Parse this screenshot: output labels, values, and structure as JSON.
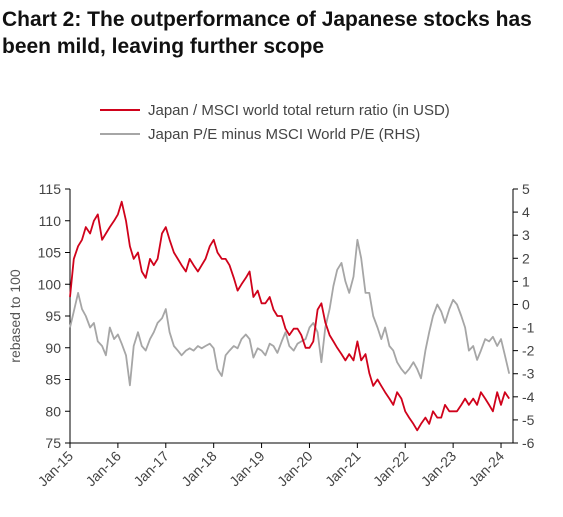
{
  "chart_data": {
    "type": "line",
    "title": "Chart 2: The outperformance of Japanese stocks has been mild, leaving further scope",
    "ylabel": "rebased to 100",
    "y2label": "",
    "ylim": [
      75,
      115
    ],
    "y2lim": [
      -6,
      5
    ],
    "yticks": [
      "115",
      "110",
      "105",
      "100",
      "95",
      "90",
      "85",
      "80",
      "75"
    ],
    "y2ticks": [
      "5",
      "4",
      "3",
      "2",
      "1",
      "0",
      "-1",
      "-2",
      "-3",
      "-4",
      "-5",
      "-6"
    ],
    "xticks": [
      "Jan-15",
      "Jan-16",
      "Jan-17",
      "Jan-18",
      "Jan-19",
      "Jan-20",
      "Jan-21",
      "Jan-22",
      "Jan-23",
      "Jan-24"
    ],
    "grid": false,
    "legend_position": "top",
    "series": [
      {
        "name": "Japan / MSCI world total return ratio (in USD)",
        "axis": "left",
        "color": "#d0021b",
        "x": [
          2015.0,
          2015.08,
          2015.17,
          2015.25,
          2015.33,
          2015.42,
          2015.5,
          2015.58,
          2015.67,
          2015.75,
          2015.83,
          2015.92,
          2016.0,
          2016.08,
          2016.17,
          2016.25,
          2016.33,
          2016.42,
          2016.5,
          2016.58,
          2016.67,
          2016.75,
          2016.83,
          2016.92,
          2017.0,
          2017.08,
          2017.17,
          2017.25,
          2017.33,
          2017.42,
          2017.5,
          2017.58,
          2017.67,
          2017.75,
          2017.83,
          2017.92,
          2018.0,
          2018.08,
          2018.17,
          2018.25,
          2018.33,
          2018.42,
          2018.5,
          2018.58,
          2018.67,
          2018.75,
          2018.83,
          2018.92,
          2019.0,
          2019.08,
          2019.17,
          2019.25,
          2019.33,
          2019.42,
          2019.5,
          2019.58,
          2019.67,
          2019.75,
          2019.83,
          2019.92,
          2020.0,
          2020.08,
          2020.17,
          2020.25,
          2020.33,
          2020.42,
          2020.5,
          2020.58,
          2020.67,
          2020.75,
          2020.83,
          2020.92,
          2021.0,
          2021.08,
          2021.17,
          2021.25,
          2021.33,
          2021.42,
          2021.5,
          2021.58,
          2021.67,
          2021.75,
          2021.83,
          2021.92,
          2022.0,
          2022.08,
          2022.17,
          2022.25,
          2022.33,
          2022.42,
          2022.5,
          2022.58,
          2022.67,
          2022.75,
          2022.83,
          2022.92,
          2023.0,
          2023.08,
          2023.17,
          2023.25,
          2023.33,
          2023.42,
          2023.5,
          2023.58,
          2023.67,
          2023.75,
          2023.83,
          2023.92,
          2024.0,
          2024.08,
          2024.17
        ],
        "values": [
          98,
          104,
          106,
          107,
          109,
          108,
          110,
          111,
          107,
          108,
          109,
          110,
          111,
          113,
          110,
          106,
          104,
          105,
          102,
          101,
          104,
          103,
          104,
          108,
          109,
          107,
          105,
          104,
          103,
          102,
          104,
          103,
          102,
          103,
          104,
          106,
          107,
          105,
          104,
          104,
          103,
          101,
          99,
          100,
          101,
          102,
          98,
          99,
          97,
          97,
          98,
          96,
          95,
          95,
          93,
          92,
          93,
          93,
          92,
          90,
          90,
          91,
          96,
          97,
          94,
          92,
          91,
          90,
          89,
          88,
          89,
          88,
          91,
          88,
          89,
          86,
          84,
          85,
          84,
          83,
          82,
          81,
          83,
          82,
          80,
          79,
          78,
          77,
          78,
          79,
          78,
          80,
          79,
          79,
          81,
          80,
          80,
          80,
          81,
          82,
          81,
          82,
          81,
          83,
          82,
          81,
          80,
          83,
          81,
          83,
          82
        ]
      },
      {
        "name": "Japan P/E minus MSCI World P/E (RHS)",
        "axis": "right",
        "color": "#a6a6a6",
        "x": [
          2015.0,
          2015.08,
          2015.17,
          2015.25,
          2015.33,
          2015.42,
          2015.5,
          2015.58,
          2015.67,
          2015.75,
          2015.83,
          2015.92,
          2016.0,
          2016.08,
          2016.17,
          2016.25,
          2016.33,
          2016.42,
          2016.5,
          2016.58,
          2016.67,
          2016.75,
          2016.83,
          2016.92,
          2017.0,
          2017.08,
          2017.17,
          2017.25,
          2017.33,
          2017.42,
          2017.5,
          2017.58,
          2017.67,
          2017.75,
          2017.83,
          2017.92,
          2018.0,
          2018.08,
          2018.17,
          2018.25,
          2018.33,
          2018.42,
          2018.5,
          2018.58,
          2018.67,
          2018.75,
          2018.83,
          2018.92,
          2019.0,
          2019.08,
          2019.17,
          2019.25,
          2019.33,
          2019.42,
          2019.5,
          2019.58,
          2019.67,
          2019.75,
          2019.83,
          2019.92,
          2020.0,
          2020.08,
          2020.17,
          2020.25,
          2020.33,
          2020.42,
          2020.5,
          2020.58,
          2020.67,
          2020.75,
          2020.83,
          2020.92,
          2021.0,
          2021.08,
          2021.17,
          2021.25,
          2021.33,
          2021.42,
          2021.5,
          2021.58,
          2021.67,
          2021.75,
          2021.83,
          2021.92,
          2022.0,
          2022.08,
          2022.17,
          2022.25,
          2022.33,
          2022.42,
          2022.5,
          2022.58,
          2022.67,
          2022.75,
          2022.83,
          2022.92,
          2023.0,
          2023.08,
          2023.17,
          2023.25,
          2023.33,
          2023.42,
          2023.5,
          2023.58,
          2023.67,
          2023.75,
          2023.83,
          2023.92,
          2024.0,
          2024.08,
          2024.17
        ],
        "values": [
          -1.0,
          -0.3,
          0.5,
          -0.2,
          -0.5,
          -1.0,
          -0.8,
          -1.6,
          -1.8,
          -2.2,
          -1.0,
          -1.5,
          -1.3,
          -1.7,
          -2.2,
          -3.5,
          -1.8,
          -1.2,
          -1.8,
          -2.0,
          -1.5,
          -1.2,
          -0.8,
          -0.6,
          -0.2,
          -1.2,
          -1.8,
          -2.0,
          -2.2,
          -2.0,
          -1.9,
          -2.0,
          -1.8,
          -1.9,
          -1.8,
          -1.7,
          -1.9,
          -2.8,
          -3.1,
          -2.2,
          -2.0,
          -1.8,
          -1.9,
          -1.5,
          -1.3,
          -1.5,
          -2.3,
          -1.9,
          -2.0,
          -2.2,
          -1.7,
          -1.8,
          -2.1,
          -1.6,
          -1.2,
          -1.8,
          -2.0,
          -1.7,
          -1.6,
          -1.5,
          -1.0,
          -0.8,
          -1.2,
          -2.5,
          -1.0,
          -0.2,
          0.8,
          1.5,
          1.8,
          1.0,
          0.5,
          1.2,
          2.8,
          2.0,
          0.5,
          0.5,
          -0.5,
          -1.0,
          -1.5,
          -1.0,
          -1.8,
          -2.0,
          -2.5,
          -2.8,
          -3.0,
          -2.8,
          -2.5,
          -2.8,
          -3.2,
          -2.0,
          -1.2,
          -0.5,
          0.0,
          -0.3,
          -0.8,
          -0.2,
          0.2,
          0.0,
          -0.5,
          -1.0,
          -2.0,
          -1.8,
          -2.4,
          -2.0,
          -1.5,
          -1.6,
          -1.4,
          -1.8,
          -1.5,
          -2.2,
          -3.0
        ]
      }
    ]
  }
}
